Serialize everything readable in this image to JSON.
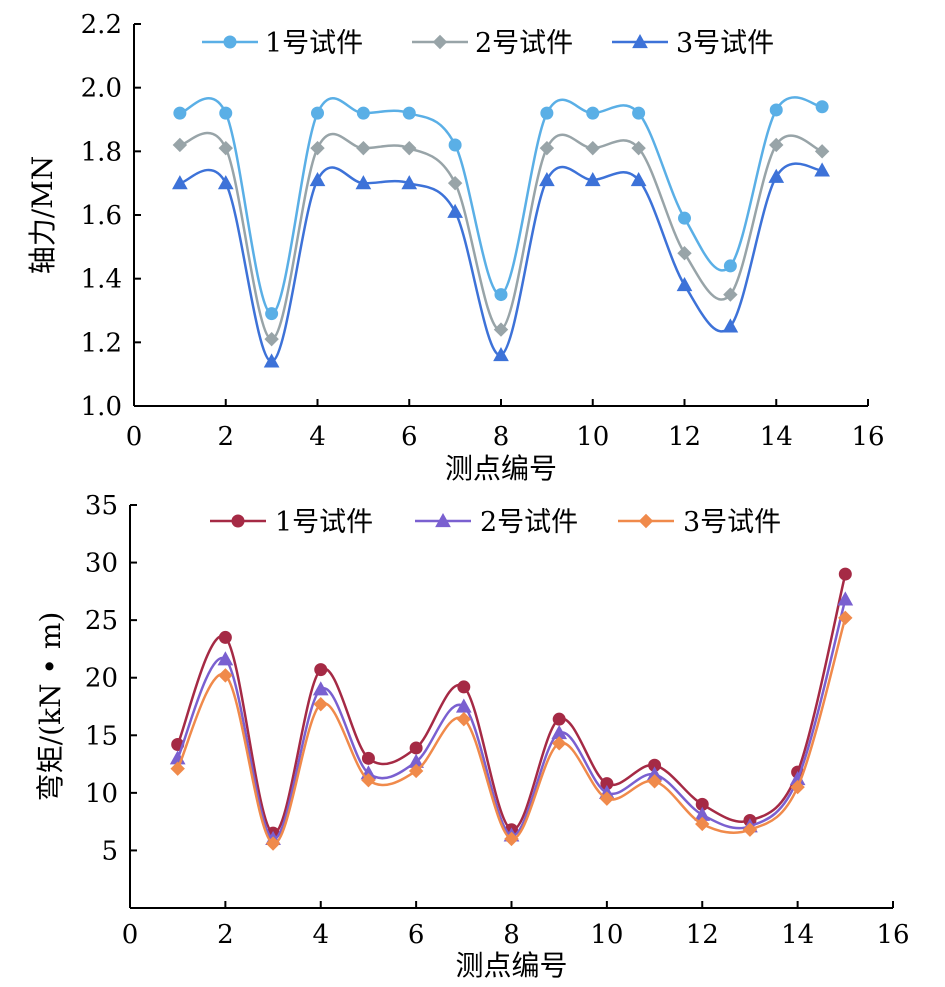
{
  "chart_data": [
    {
      "type": "line",
      "smooth": true,
      "xlabel": "测点编号",
      "ylabel": "轴力/MN",
      "xlim": [
        0,
        16
      ],
      "ylim": [
        1.0,
        2.2
      ],
      "xticks": [
        "0",
        "2",
        "4",
        "6",
        "8",
        "10",
        "12",
        "14",
        "16"
      ],
      "yticks": [
        "1.0",
        "1.2",
        "1.4",
        "1.6",
        "1.8",
        "2.0",
        "2.2"
      ],
      "grid": false,
      "legend_position": "top",
      "x": [
        1,
        2,
        3,
        4,
        5,
        6,
        7,
        8,
        9,
        10,
        11,
        12,
        13,
        14,
        15
      ],
      "series": [
        {
          "name": "1号试件",
          "marker": "circle",
          "color": "#5aafe6",
          "values": [
            1.92,
            1.92,
            1.29,
            1.92,
            1.92,
            1.92,
            1.82,
            1.35,
            1.92,
            1.92,
            1.92,
            1.59,
            1.44,
            1.93,
            1.94
          ]
        },
        {
          "name": "2号试件",
          "marker": "diamond",
          "color": "#98a4a8",
          "values": [
            1.82,
            1.81,
            1.21,
            1.81,
            1.81,
            1.81,
            1.7,
            1.24,
            1.81,
            1.81,
            1.81,
            1.48,
            1.35,
            1.82,
            1.8
          ]
        },
        {
          "name": "3号试件",
          "marker": "triangle",
          "color": "#3d72d8",
          "values": [
            1.7,
            1.7,
            1.14,
            1.71,
            1.7,
            1.7,
            1.61,
            1.16,
            1.71,
            1.71,
            1.71,
            1.38,
            1.25,
            1.72,
            1.74
          ]
        }
      ]
    },
    {
      "type": "line",
      "smooth": true,
      "xlabel": "测点编号",
      "ylabel": "弯矩/(kN • m)",
      "xlim": [
        0,
        16
      ],
      "ylim": [
        0,
        35
      ],
      "xticks": [
        "0",
        "2",
        "4",
        "6",
        "8",
        "10",
        "12",
        "14",
        "16"
      ],
      "yticks": [
        "5",
        "10",
        "15",
        "20",
        "25",
        "30",
        "35"
      ],
      "grid": false,
      "legend_position": "top",
      "x": [
        1,
        2,
        3,
        4,
        5,
        6,
        7,
        8,
        9,
        10,
        11,
        12,
        13,
        14,
        15
      ],
      "series": [
        {
          "name": "1号试件",
          "marker": "circle",
          "color": "#a52a45",
          "values": [
            14.2,
            23.5,
            6.5,
            20.7,
            13.0,
            13.9,
            19.2,
            6.8,
            16.4,
            10.8,
            12.4,
            9.0,
            7.6,
            11.8,
            29.0
          ]
        },
        {
          "name": "2号试件",
          "marker": "triangle",
          "color": "#7a60d0",
          "values": [
            13.0,
            21.6,
            6.0,
            19.0,
            11.7,
            12.7,
            17.5,
            6.3,
            15.2,
            10.0,
            11.6,
            8.1,
            7.1,
            11.2,
            26.8
          ]
        },
        {
          "name": "3号试件",
          "marker": "diamond",
          "color": "#f08a4b",
          "values": [
            12.1,
            20.2,
            5.6,
            17.7,
            11.1,
            11.9,
            16.4,
            6.0,
            14.3,
            9.5,
            11.0,
            7.3,
            6.8,
            10.5,
            25.2
          ]
        }
      ]
    }
  ]
}
